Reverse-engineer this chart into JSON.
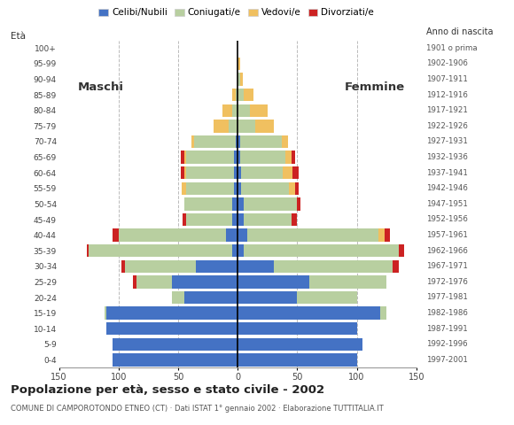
{
  "age_groups": [
    "0-4",
    "5-9",
    "10-14",
    "15-19",
    "20-24",
    "25-29",
    "30-34",
    "35-39",
    "40-44",
    "45-49",
    "50-54",
    "55-59",
    "60-64",
    "65-69",
    "70-74",
    "75-79",
    "80-84",
    "85-89",
    "90-94",
    "95-99",
    "100+"
  ],
  "birth_years": [
    "1997-2001",
    "1992-1996",
    "1987-1991",
    "1982-1986",
    "1977-1981",
    "1972-1976",
    "1967-1971",
    "1962-1966",
    "1957-1961",
    "1952-1956",
    "1947-1951",
    "1942-1946",
    "1937-1941",
    "1932-1936",
    "1927-1931",
    "1922-1926",
    "1917-1921",
    "1912-1916",
    "1907-1911",
    "1902-1906",
    "1901 o prima"
  ],
  "colors": {
    "celibe": "#4472c4",
    "coniugato": "#b8cfa0",
    "vedovo": "#f0c060",
    "divorziato": "#cc2222"
  },
  "males": {
    "celibe": [
      105,
      105,
      110,
      110,
      45,
      55,
      35,
      5,
      10,
      5,
      5,
      3,
      3,
      3,
      2,
      0,
      0,
      0,
      0,
      0,
      0
    ],
    "coniugato": [
      0,
      0,
      0,
      2,
      10,
      30,
      60,
      120,
      90,
      38,
      40,
      40,
      40,
      40,
      35,
      8,
      5,
      2,
      0,
      0,
      0
    ],
    "vedovo": [
      0,
      0,
      0,
      0,
      0,
      0,
      0,
      0,
      0,
      0,
      0,
      4,
      2,
      2,
      2,
      12,
      8,
      3,
      0,
      0,
      0
    ],
    "divorziato": [
      0,
      0,
      0,
      0,
      0,
      3,
      3,
      2,
      5,
      3,
      0,
      0,
      3,
      3,
      0,
      0,
      0,
      0,
      0,
      0,
      0
    ]
  },
  "females": {
    "celibe": [
      100,
      105,
      100,
      120,
      50,
      60,
      30,
      5,
      8,
      5,
      5,
      3,
      3,
      2,
      2,
      0,
      0,
      0,
      0,
      0,
      0
    ],
    "coniugato": [
      0,
      0,
      0,
      5,
      50,
      65,
      100,
      130,
      110,
      40,
      45,
      40,
      35,
      38,
      35,
      15,
      10,
      5,
      2,
      0,
      0
    ],
    "vedovo": [
      0,
      0,
      0,
      0,
      0,
      0,
      0,
      0,
      5,
      0,
      0,
      5,
      8,
      5,
      5,
      15,
      15,
      8,
      2,
      2,
      0
    ],
    "divorziato": [
      0,
      0,
      0,
      0,
      0,
      0,
      5,
      5,
      5,
      5,
      3,
      3,
      5,
      3,
      0,
      0,
      0,
      0,
      0,
      0,
      0
    ]
  },
  "title": "Popolazione per età, sesso e stato civile - 2002",
  "subtitle": "COMUNE DI CAMPOROTONDO ETNEO (CT) · Dati ISTAT 1° gennaio 2002 · Elaborazione TUTTITALIA.IT",
  "xlim": 150,
  "legend_labels": [
    "Celibi/Nubili",
    "Coniugati/e",
    "Vedovi/e",
    "Divorziati/e"
  ],
  "bg_color": "#ffffff",
  "bar_height": 0.82,
  "grid_color": "#bbbbbb"
}
